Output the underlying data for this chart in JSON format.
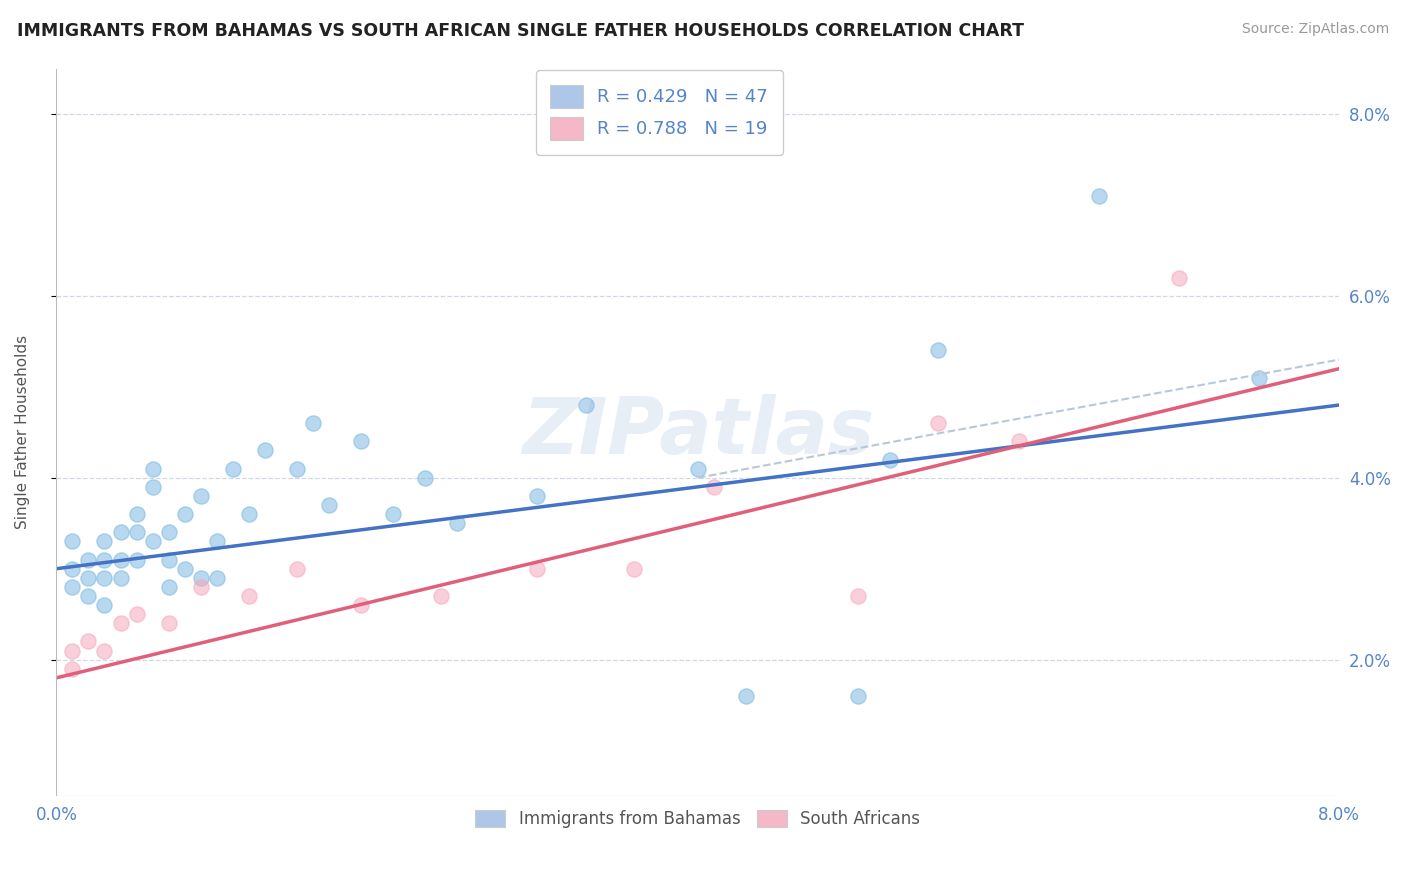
{
  "title": "IMMIGRANTS FROM BAHAMAS VS SOUTH AFRICAN SINGLE FATHER HOUSEHOLDS CORRELATION CHART",
  "source": "Source: ZipAtlas.com",
  "ylabel": "Single Father Households",
  "xmin": 0.0,
  "xmax": 0.08,
  "ymin": 0.005,
  "ymax": 0.085,
  "yticks": [
    0.02,
    0.04,
    0.06,
    0.08
  ],
  "ytick_labels": [
    "2.0%",
    "4.0%",
    "6.0%",
    "8.0%"
  ],
  "xticks": [
    0.0,
    0.01,
    0.02,
    0.03,
    0.04,
    0.05,
    0.06,
    0.07,
    0.08
  ],
  "xtick_labels": [
    "0.0%",
    "",
    "",
    "",
    "",
    "",
    "",
    "",
    "8.0%"
  ],
  "legend_r1": "R = 0.429   N = 47",
  "legend_r2": "R = 0.788   N = 19",
  "legend_blue_color": "#aec6e8",
  "legend_pink_color": "#f4b8c8",
  "blue_dot_color": "#7db8e0",
  "pink_dot_color": "#f4a8bc",
  "blue_line_color": "#4472c4",
  "pink_line_color": "#e0607a",
  "dashed_line_color": "#b8c8d8",
  "watermark": "ZIPatlas",
  "background_color": "#ffffff",
  "grid_color": "#d0d8e8",
  "title_color": "#222222",
  "source_color": "#999999",
  "tick_color": "#5585c8",
  "ylabel_color": "#555555",
  "bottom_legend_color": "#555555",
  "blue_scatter_x": [
    0.001,
    0.001,
    0.001,
    0.002,
    0.002,
    0.002,
    0.003,
    0.003,
    0.003,
    0.003,
    0.004,
    0.004,
    0.004,
    0.005,
    0.005,
    0.005,
    0.006,
    0.006,
    0.006,
    0.007,
    0.007,
    0.007,
    0.008,
    0.008,
    0.009,
    0.009,
    0.01,
    0.01,
    0.011,
    0.012,
    0.013,
    0.015,
    0.016,
    0.017,
    0.019,
    0.021,
    0.023,
    0.025,
    0.03,
    0.033,
    0.04,
    0.043,
    0.05,
    0.052,
    0.055,
    0.065,
    0.075
  ],
  "blue_scatter_y": [
    0.03,
    0.033,
    0.028,
    0.029,
    0.031,
    0.027,
    0.026,
    0.029,
    0.031,
    0.033,
    0.029,
    0.031,
    0.034,
    0.031,
    0.034,
    0.036,
    0.041,
    0.039,
    0.033,
    0.028,
    0.031,
    0.034,
    0.03,
    0.036,
    0.029,
    0.038,
    0.029,
    0.033,
    0.041,
    0.036,
    0.043,
    0.041,
    0.046,
    0.037,
    0.044,
    0.036,
    0.04,
    0.035,
    0.038,
    0.048,
    0.041,
    0.016,
    0.016,
    0.042,
    0.054,
    0.071,
    0.051
  ],
  "pink_scatter_x": [
    0.001,
    0.001,
    0.002,
    0.003,
    0.004,
    0.005,
    0.007,
    0.009,
    0.012,
    0.015,
    0.019,
    0.024,
    0.03,
    0.036,
    0.041,
    0.05,
    0.055,
    0.06,
    0.07
  ],
  "pink_scatter_y": [
    0.019,
    0.021,
    0.022,
    0.021,
    0.024,
    0.025,
    0.024,
    0.028,
    0.027,
    0.03,
    0.026,
    0.027,
    0.03,
    0.03,
    0.039,
    0.027,
    0.046,
    0.044,
    0.062
  ],
  "blue_line_x": [
    0.0,
    0.08
  ],
  "blue_line_y": [
    0.03,
    0.048
  ],
  "pink_line_x": [
    0.0,
    0.08
  ],
  "pink_line_y": [
    0.018,
    0.052
  ],
  "dashed_line_x": [
    0.04,
    0.08
  ],
  "dashed_line_y": [
    0.04,
    0.053
  ]
}
